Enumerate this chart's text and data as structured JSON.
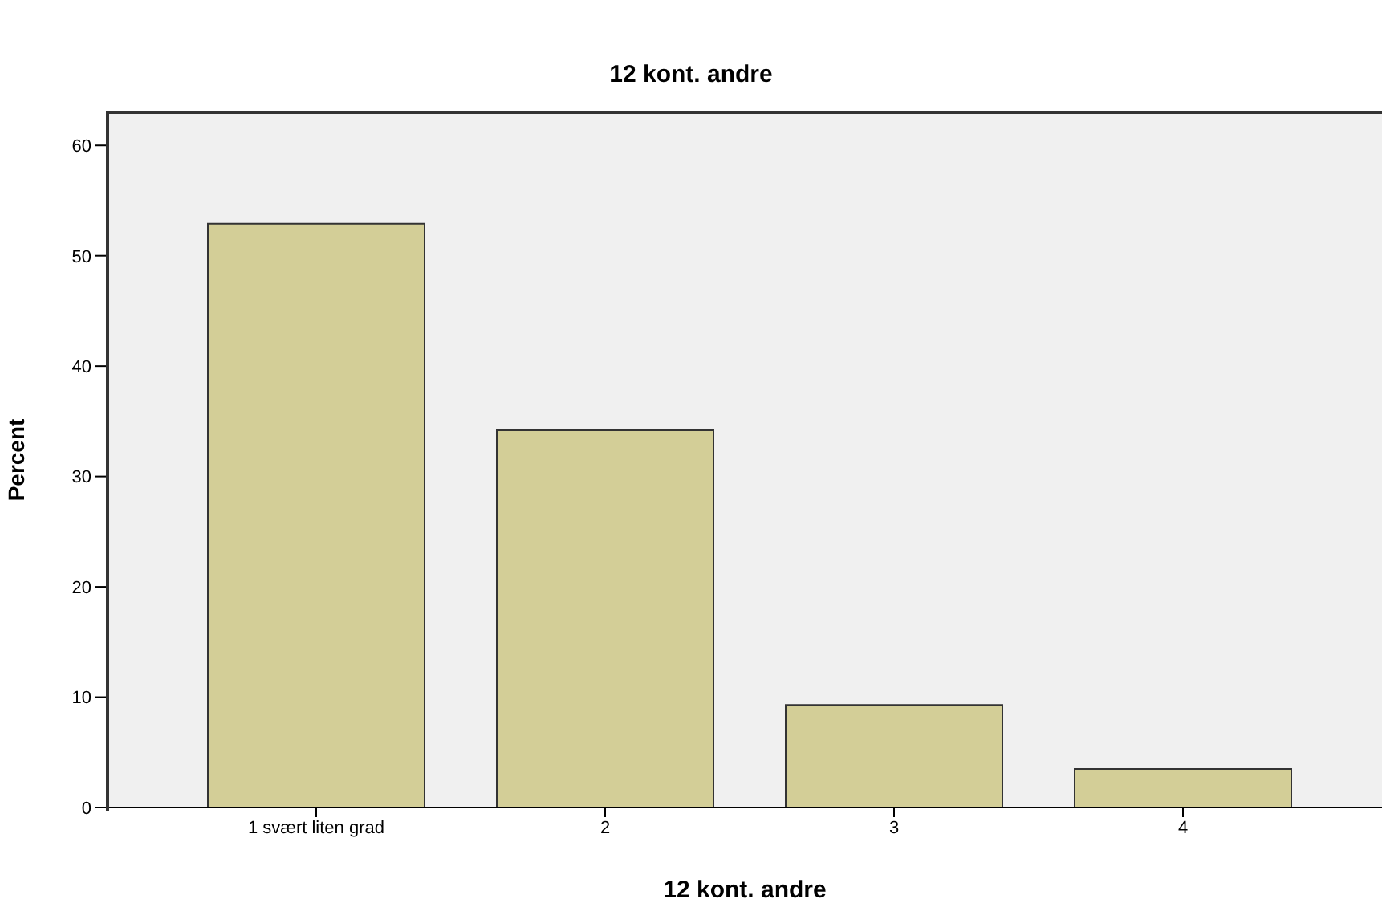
{
  "chart_data": {
    "type": "bar",
    "title": "12 kont. andre",
    "xlabel": "12 kont. andre",
    "ylabel": "Percent",
    "categories": [
      "1 svært liten grad",
      "2",
      "3",
      "4"
    ],
    "values": [
      52.9,
      34.2,
      9.3,
      3.5
    ],
    "color": "#d3ce97",
    "ylim": [
      0,
      63
    ],
    "yticks": [
      0,
      10,
      20,
      30,
      40,
      50,
      60
    ]
  }
}
